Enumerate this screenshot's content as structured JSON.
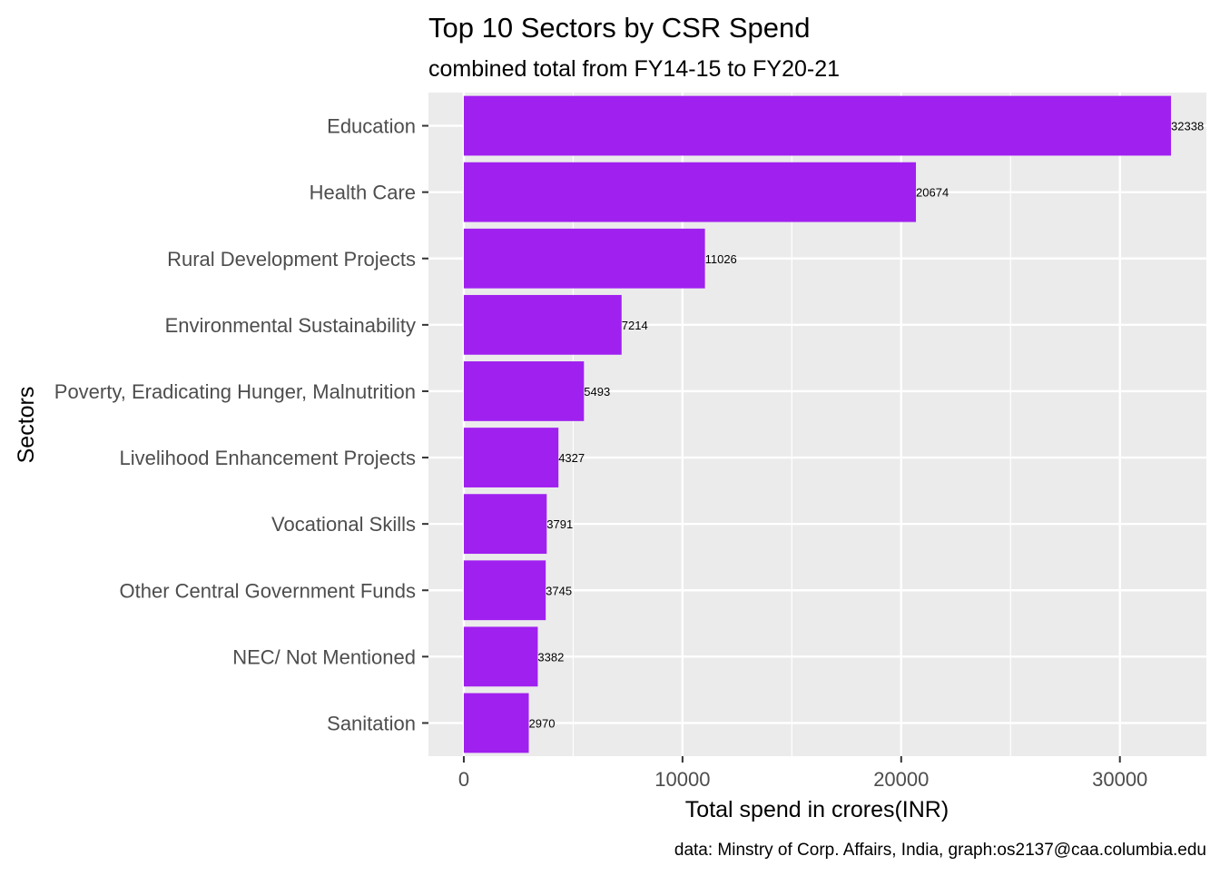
{
  "chart_data": {
    "type": "bar",
    "orientation": "horizontal",
    "title": "Top 10 Sectors by CSR Spend",
    "subtitle": "combined total from FY14-15 to FY20-21",
    "xlabel": "Total spend in crores(INR)",
    "ylabel": "Sectors",
    "caption": "data: Minstry of Corp. Affairs, India, graph:os2137@caa.columbia.edu",
    "categories": [
      "Education",
      "Health Care",
      "Rural Development Projects",
      "Environmental Sustainability",
      "Poverty, Eradicating Hunger, Malnutrition",
      "Livelihood Enhancement Projects",
      "Vocational Skills",
      "Other Central Government Funds",
      "NEC/ Not Mentioned",
      "Sanitation"
    ],
    "values": [
      32338,
      20674,
      11026,
      7214,
      5493,
      4327,
      3791,
      3745,
      3382,
      2970
    ],
    "data_labels": [
      "32338",
      "20674",
      "11026",
      "7214",
      "5493",
      "4327",
      "3791",
      "3745",
      "3382",
      "2970"
    ],
    "xlim": [
      -1617,
      33955
    ],
    "x_ticks": [
      0,
      10000,
      20000,
      30000
    ],
    "x_tick_labels": [
      "0",
      "10000",
      "20000",
      "30000"
    ],
    "x_minor_ticks": [
      5000,
      15000,
      25000
    ],
    "grid": true,
    "legend": "none",
    "colors": {
      "bar": "#A020F0",
      "panel_background": "#EBEBEB",
      "gridline": "#FFFFFF",
      "axis_text": "#4D4D4D",
      "title_text": "#000000"
    }
  }
}
